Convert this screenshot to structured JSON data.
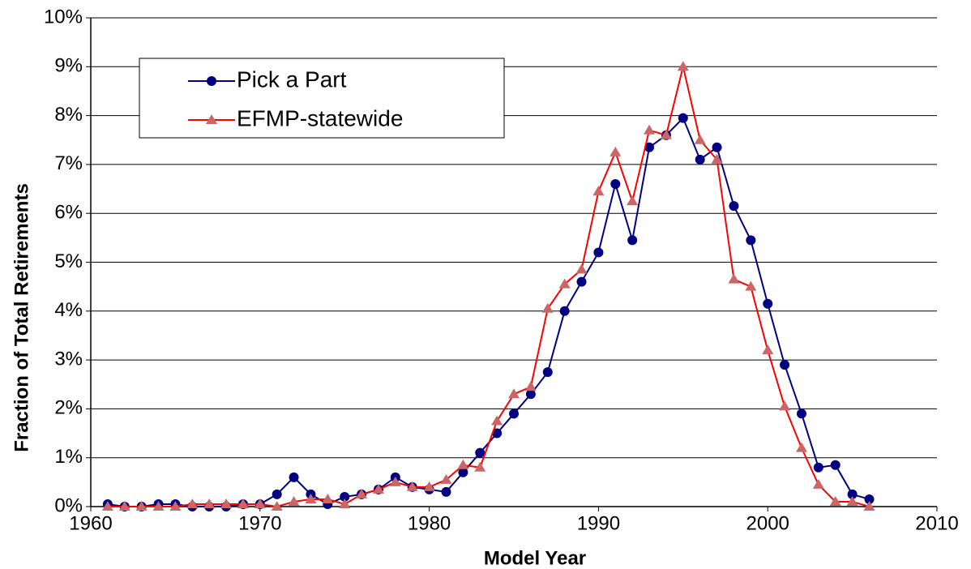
{
  "chart_data": {
    "type": "line",
    "x_label": "Model Year",
    "y_label": "Fraction of Total Retirements",
    "x": [
      1961,
      1962,
      1963,
      1964,
      1965,
      1966,
      1967,
      1968,
      1969,
      1970,
      1971,
      1972,
      1973,
      1974,
      1975,
      1976,
      1977,
      1978,
      1979,
      1980,
      1981,
      1982,
      1983,
      1984,
      1985,
      1986,
      1987,
      1988,
      1989,
      1990,
      1991,
      1992,
      1993,
      1994,
      1995,
      1996,
      1997,
      1998,
      1999,
      2000,
      2001,
      2002,
      2003,
      2004,
      2005,
      2006
    ],
    "series": [
      {
        "name": "Pick a Part",
        "color": "#000080",
        "marker": "circle",
        "values": [
          0.05,
          0,
          0,
          0.05,
          0.05,
          0,
          0,
          0,
          0.05,
          0.05,
          0.25,
          0.6,
          0.25,
          0.05,
          0.2,
          0.25,
          0.35,
          0.6,
          0.4,
          0.35,
          0.3,
          0.7,
          1.1,
          1.5,
          1.9,
          2.3,
          2.75,
          4.0,
          4.6,
          5.2,
          6.6,
          5.45,
          7.35,
          7.6,
          7.95,
          7.1,
          7.35,
          6.15,
          5.45,
          4.15,
          2.9,
          1.9,
          0.8,
          0.85,
          0.25,
          0.15
        ]
      },
      {
        "name": "EFMP-statewide",
        "color": "#ff0000",
        "marker_color": "#cc6666",
        "marker": "triangle",
        "values": [
          0,
          0,
          0,
          0,
          0,
          0.05,
          0.05,
          0.05,
          0.05,
          0.05,
          0,
          0.1,
          0.15,
          0.15,
          0.05,
          0.25,
          0.35,
          0.5,
          0.4,
          0.4,
          0.55,
          0.85,
          0.8,
          1.75,
          2.3,
          2.45,
          4.05,
          4.55,
          4.85,
          6.45,
          7.25,
          6.25,
          7.7,
          7.6,
          9.0,
          7.5,
          7.1,
          4.65,
          4.5,
          3.2,
          2.05,
          1.2,
          0.45,
          0.1,
          0.1,
          0
        ]
      }
    ],
    "xlim": [
      1960,
      2010
    ],
    "xticks": [
      1960,
      1970,
      1980,
      1990,
      2000,
      2010
    ],
    "ylim": [
      0,
      10
    ],
    "yticks": [
      {
        "value": 0,
        "label": "0%"
      },
      {
        "value": 1,
        "label": "1%"
      },
      {
        "value": 2,
        "label": "2%"
      },
      {
        "value": 3,
        "label": "3%"
      },
      {
        "value": 4,
        "label": "4%"
      },
      {
        "value": 5,
        "label": "5%"
      },
      {
        "value": 6,
        "label": "6%"
      },
      {
        "value": 7,
        "label": "7%"
      },
      {
        "value": 8,
        "label": "8%"
      },
      {
        "value": 9,
        "label": "9%"
      },
      {
        "value": 10,
        "label": "10%"
      }
    ],
    "grid": true
  }
}
